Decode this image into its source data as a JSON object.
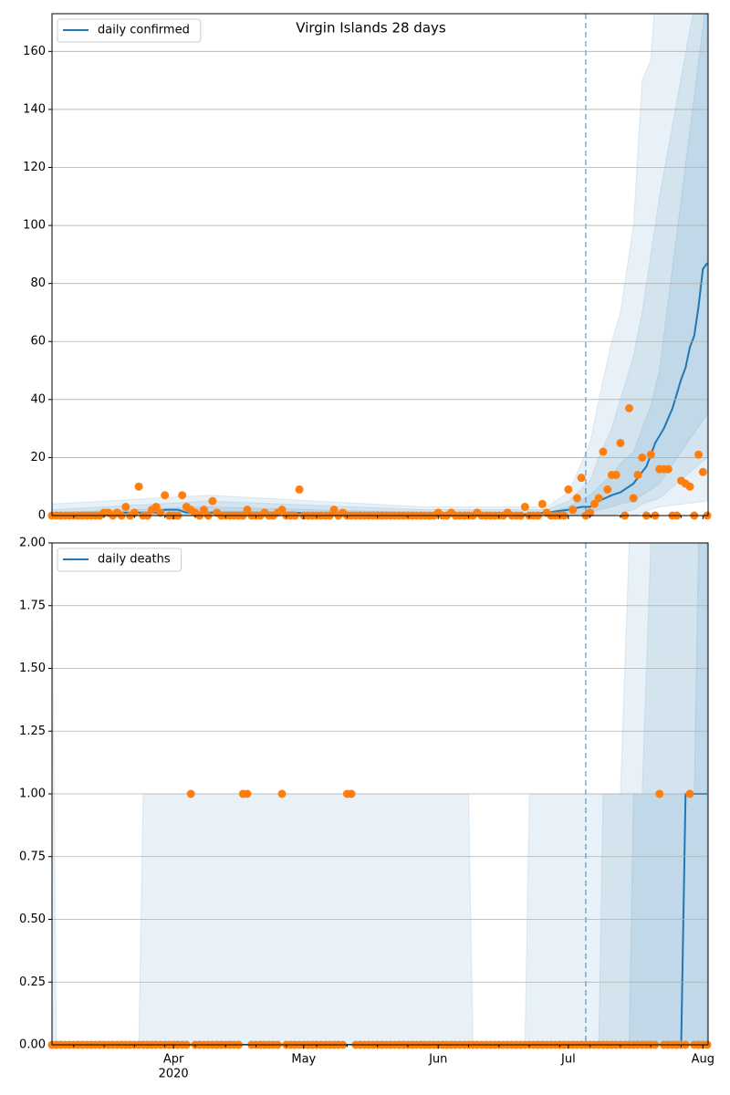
{
  "chart_data": [
    {
      "type": "line",
      "title": "Virgin Islands 28 days",
      "legend": "upper left",
      "grid": "y",
      "xlim": [
        64,
        215.2
      ],
      "ylim": [
        0,
        173
      ],
      "yticks": [
        0,
        20,
        40,
        60,
        80,
        100,
        120,
        140,
        160
      ],
      "xticks": [
        92,
        122,
        153,
        183,
        214
      ],
      "xminorticks": [
        69,
        76,
        83,
        90,
        97,
        104,
        111,
        118,
        125,
        132,
        139,
        146,
        160,
        167,
        174,
        181,
        188,
        195,
        202,
        209
      ],
      "vline": 187,
      "x": [
        64,
        65,
        66,
        67,
        68,
        69,
        70,
        71,
        72,
        73,
        74,
        75,
        76,
        77,
        78,
        79,
        80,
        81,
        82,
        83,
        84,
        85,
        86,
        87,
        88,
        89,
        90,
        91,
        92,
        93,
        94,
        95,
        96,
        97,
        98,
        99,
        100,
        101,
        102,
        103,
        104,
        105,
        106,
        107,
        108,
        109,
        110,
        111,
        112,
        113,
        114,
        115,
        116,
        117,
        118,
        119,
        120,
        121,
        122,
        123,
        124,
        125,
        126,
        127,
        128,
        129,
        130,
        131,
        132,
        133,
        134,
        135,
        136,
        137,
        138,
        139,
        140,
        141,
        142,
        143,
        144,
        145,
        146,
        147,
        148,
        149,
        150,
        151,
        152,
        153,
        154,
        155,
        156,
        157,
        158,
        159,
        160,
        161,
        162,
        163,
        164,
        165,
        166,
        167,
        168,
        169,
        170,
        171,
        172,
        173,
        174,
        175,
        176,
        177,
        178,
        179,
        180,
        181,
        182,
        183,
        184,
        185,
        186,
        187,
        188,
        189,
        190,
        191,
        192,
        193,
        194,
        195,
        196,
        197,
        198,
        199,
        200,
        201,
        202,
        203,
        204,
        205,
        206,
        207,
        208,
        209,
        210,
        211,
        212,
        213,
        214,
        215
      ],
      "observed": {
        "color": "#ff7f0e",
        "values": [
          0,
          0,
          0,
          0,
          0,
          0,
          0,
          0,
          0,
          0,
          0,
          0,
          1,
          1,
          0,
          1,
          0,
          3,
          0,
          1,
          10,
          0,
          0,
          2,
          3,
          1,
          7,
          0,
          0,
          0,
          7,
          3,
          2,
          1,
          0,
          2,
          0,
          5,
          1,
          0,
          0,
          0,
          0,
          0,
          0,
          2,
          0,
          0,
          0,
          1,
          0,
          0,
          1,
          2,
          0,
          0,
          0,
          9,
          0,
          0,
          0,
          0,
          0,
          0,
          0,
          2,
          0,
          1,
          0,
          0,
          0,
          0,
          0,
          0,
          0,
          0,
          0,
          0,
          0,
          0,
          0,
          0,
          0,
          0,
          0,
          0,
          0,
          0,
          0,
          1,
          0,
          0,
          1,
          0,
          0,
          0,
          0,
          0,
          1,
          0,
          0,
          0,
          0,
          0,
          0,
          1,
          0,
          0,
          0,
          3,
          0,
          0,
          0,
          4,
          1,
          0,
          0,
          0,
          0,
          9,
          2,
          6,
          13,
          0,
          1,
          4,
          6,
          22,
          9,
          14,
          14,
          25,
          0,
          37,
          6,
          14,
          20,
          0,
          21,
          0,
          16,
          16,
          16,
          0,
          0,
          12,
          11,
          10,
          0,
          21,
          15,
          0
        ]
      },
      "series": [
        {
          "name": "daily confirmed",
          "color": "#1f77b4",
          "x": [
            64,
            80,
            88,
            90,
            93,
            95,
            100,
            110,
            120,
            130,
            150,
            170,
            178,
            183,
            186,
            188,
            190,
            193,
            195,
            198,
            200,
            201,
            203,
            205,
            207,
            209,
            210,
            211,
            212,
            213,
            214,
            215
          ],
          "values": [
            0,
            1,
            1,
            2,
            2,
            1,
            1,
            1,
            1,
            0,
            0,
            0,
            1,
            2,
            3,
            3,
            5,
            7,
            8,
            11,
            15,
            17,
            25,
            30,
            37,
            47,
            51,
            58,
            62,
            72,
            85,
            87
          ]
        }
      ],
      "bands": [
        {
          "color": "#1f77b4",
          "opacity": 0.1,
          "x": [
            64,
            100,
            150,
            178,
            183,
            188,
            190,
            193,
            195,
            198,
            200,
            202,
            204,
            215
          ],
          "upper": [
            4,
            7,
            3,
            3,
            8,
            25,
            40,
            60,
            70,
            100,
            150,
            157,
            200,
            200
          ],
          "lower": [
            0,
            0,
            0,
            0,
            0,
            0,
            0,
            0,
            0,
            0,
            1,
            2,
            3,
            5
          ]
        },
        {
          "color": "#1f77b4",
          "opacity": 0.1,
          "x": [
            64,
            100,
            150,
            178,
            183,
            188,
            190,
            193,
            195,
            198,
            200,
            202,
            204,
            215
          ],
          "upper": [
            2,
            5,
            2,
            2,
            5,
            12,
            20,
            30,
            40,
            55,
            70,
            90,
            110,
            200
          ],
          "lower": [
            0,
            0,
            0,
            0,
            0,
            0,
            0,
            0,
            1,
            2,
            4,
            5,
            6,
            20
          ]
        },
        {
          "color": "#1f77b4",
          "opacity": 0.1,
          "x": [
            64,
            100,
            150,
            178,
            183,
            188,
            190,
            193,
            195,
            198,
            200,
            202,
            204,
            215
          ],
          "upper": [
            1,
            3,
            1,
            1,
            3,
            7,
            10,
            14,
            18,
            22,
            30,
            38,
            50,
            180
          ],
          "lower": [
            0,
            0,
            0,
            0,
            0,
            1,
            2,
            3,
            4,
            5,
            7,
            9,
            11,
            35
          ]
        }
      ]
    },
    {
      "type": "line",
      "legend": "upper left",
      "grid": "y",
      "xlim": [
        64,
        215.2
      ],
      "ylim": [
        0,
        2
      ],
      "yticks": [
        {
          "value": 0,
          "label": "0.00"
        },
        {
          "value": 0.25,
          "label": "0.25"
        },
        {
          "value": 0.5,
          "label": "0.50"
        },
        {
          "value": 0.75,
          "label": "0.75"
        },
        {
          "value": 1,
          "label": "1.00"
        },
        {
          "value": 1.25,
          "label": "1.25"
        },
        {
          "value": 1.5,
          "label": "1.50"
        },
        {
          "value": 1.75,
          "label": "1.75"
        },
        {
          "value": 2,
          "label": "2.00"
        }
      ],
      "xticks": [
        {
          "value": 92,
          "label": "Apr"
        },
        {
          "value": 122,
          "label": "May"
        },
        {
          "value": 153,
          "label": "Jun"
        },
        {
          "value": 183,
          "label": "Jul"
        },
        {
          "value": 214,
          "label": "Aug"
        }
      ],
      "year_label": "2020",
      "xminorticks": [
        69,
        76,
        83,
        90,
        97,
        104,
        111,
        118,
        125,
        132,
        139,
        146,
        160,
        167,
        174,
        181,
        188,
        195,
        202,
        209
      ],
      "vline": 187,
      "x": [
        64,
        65,
        66,
        67,
        68,
        69,
        70,
        71,
        72,
        73,
        74,
        75,
        76,
        77,
        78,
        79,
        80,
        81,
        82,
        83,
        84,
        85,
        86,
        87,
        88,
        89,
        90,
        91,
        92,
        93,
        94,
        95,
        96,
        97,
        98,
        99,
        100,
        101,
        102,
        103,
        104,
        105,
        106,
        107,
        108,
        109,
        110,
        111,
        112,
        113,
        114,
        115,
        116,
        117,
        118,
        119,
        120,
        121,
        122,
        123,
        124,
        125,
        126,
        127,
        128,
        129,
        130,
        131,
        132,
        133,
        134,
        135,
        136,
        137,
        138,
        139,
        140,
        141,
        142,
        143,
        144,
        145,
        146,
        147,
        148,
        149,
        150,
        151,
        152,
        153,
        154,
        155,
        156,
        157,
        158,
        159,
        160,
        161,
        162,
        163,
        164,
        165,
        166,
        167,
        168,
        169,
        170,
        171,
        172,
        173,
        174,
        175,
        176,
        177,
        178,
        179,
        180,
        181,
        182,
        183,
        184,
        185,
        186,
        187,
        188,
        189,
        190,
        191,
        192,
        193,
        194,
        195,
        196,
        197,
        198,
        199,
        200,
        201,
        202,
        203,
        204,
        205,
        206,
        207,
        208,
        209,
        210,
        211,
        212,
        213,
        214,
        215
      ],
      "observed": {
        "color": "#ff7f0e",
        "values": [
          0,
          0,
          0,
          0,
          0,
          0,
          0,
          0,
          0,
          0,
          0,
          0,
          0,
          0,
          0,
          0,
          0,
          0,
          0,
          0,
          0,
          0,
          0,
          0,
          0,
          0,
          0,
          0,
          0,
          0,
          0,
          0,
          1,
          0,
          0,
          0,
          0,
          0,
          0,
          0,
          0,
          0,
          0,
          0,
          1,
          1,
          0,
          0,
          0,
          0,
          0,
          0,
          0,
          1,
          0,
          0,
          0,
          0,
          0,
          0,
          0,
          0,
          0,
          0,
          0,
          0,
          0,
          0,
          1,
          1,
          0,
          0,
          0,
          0,
          0,
          0,
          0,
          0,
          0,
          0,
          0,
          0,
          0,
          0,
          0,
          0,
          0,
          0,
          0,
          0,
          0,
          0,
          0,
          0,
          0,
          0,
          0,
          0,
          0,
          0,
          0,
          0,
          0,
          0,
          0,
          0,
          0,
          0,
          0,
          0,
          0,
          0,
          0,
          0,
          0,
          0,
          0,
          0,
          0,
          0,
          0,
          0,
          0,
          0,
          0,
          0,
          0,
          0,
          0,
          0,
          0,
          0,
          0,
          0,
          0,
          0,
          0,
          0,
          0,
          0,
          1,
          0,
          0,
          0,
          0,
          0,
          0,
          1,
          0,
          0,
          0,
          0
        ]
      },
      "series": [
        {
          "name": "daily deaths",
          "color": "#1f77b4",
          "x": [
            64,
            209,
            210,
            215
          ],
          "values": [
            0,
            0,
            1,
            1
          ]
        }
      ],
      "bands": [
        {
          "color": "#1f77b4",
          "opacity": 0.1,
          "x": [
            64,
            65,
            84,
            85,
            160,
            161,
            173,
            174,
            195,
            197,
            215
          ],
          "upper": [
            2,
            0,
            0,
            1,
            1,
            0,
            0,
            1,
            1,
            2,
            2
          ],
          "lower": [
            0,
            0,
            0,
            0,
            0,
            0,
            0,
            0,
            0,
            0,
            0
          ]
        },
        {
          "color": "#1f77b4",
          "opacity": 0.1,
          "x": [
            64,
            190,
            191,
            200,
            202,
            215
          ],
          "upper": [
            0,
            0,
            1,
            1,
            2,
            2
          ],
          "lower": [
            0,
            0,
            0,
            0,
            0,
            0
          ]
        },
        {
          "color": "#1f77b4",
          "opacity": 0.1,
          "x": [
            64,
            197,
            198,
            212,
            213,
            215
          ],
          "upper": [
            0,
            0,
            1,
            1,
            2,
            2
          ],
          "lower": [
            0,
            0,
            0,
            0,
            0,
            0
          ]
        }
      ]
    }
  ]
}
